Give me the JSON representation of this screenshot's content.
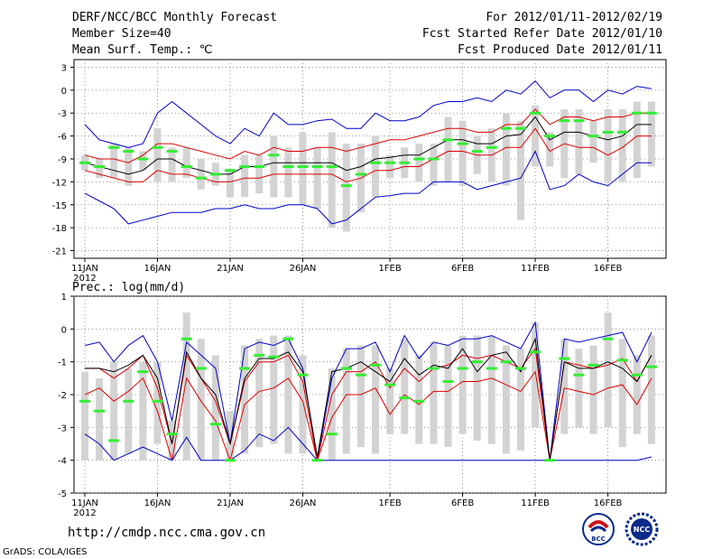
{
  "header": {
    "title_line1": "DERF/NCC/BCC Monthly Forecast",
    "title_line2": "Member Size=40",
    "title_line3": "Mean Surf. Temp.: ℃",
    "right_line1": "For 2012/01/11-2012/02/19",
    "right_line2": "Fcst Started Refer Date 2012/01/10",
    "right_line3": "Fcst Produced Date 2012/01/11"
  },
  "footer": {
    "url": "http://cmdp.ncc.cma.gov.cn",
    "credit": "GrADS: COLA/IGES",
    "logo_bcc_text": "BCC",
    "logo_ncc_text": "NCC"
  },
  "colors": {
    "spread": "#d3d3d3",
    "median": "#33ee33",
    "ensemble_max_min": "#0000cc",
    "ensemble_pct": "#dd0000",
    "ensemble_mean": "#000000",
    "grid": "#777777"
  },
  "chart_data": [
    {
      "type": "line",
      "title": "Mean Surf. Temp.: ℃",
      "xlabel": "",
      "ylabel": "",
      "ylim": [
        -22,
        4
      ],
      "yticks": [
        3,
        0,
        -3,
        -6,
        -9,
        -12,
        -15,
        -18,
        -21
      ],
      "x_ticks": [
        {
          "day": 1,
          "label": "11JAN",
          "sublabel": "2012"
        },
        {
          "day": 6,
          "label": "16JAN"
        },
        {
          "day": 11,
          "label": "21JAN"
        },
        {
          "day": 16,
          "label": "26JAN"
        },
        {
          "day": 22,
          "label": "1FEB"
        },
        {
          "day": 27,
          "label": "6FEB"
        },
        {
          "day": 32,
          "label": "11FEB"
        },
        {
          "day": 37,
          "label": "16FEB"
        }
      ],
      "x": [
        1,
        2,
        3,
        4,
        5,
        6,
        7,
        8,
        9,
        10,
        11,
        12,
        13,
        14,
        15,
        16,
        17,
        18,
        19,
        20,
        21,
        22,
        23,
        24,
        25,
        26,
        27,
        28,
        29,
        30,
        31,
        32,
        33,
        34,
        35,
        36,
        37,
        38,
        39,
        40
      ],
      "series": [
        {
          "name": "max",
          "role": "max",
          "values": [
            -4.5,
            -6.5,
            -7,
            -7.5,
            -7,
            -3,
            -1.5,
            -3,
            -4.5,
            -6,
            -7,
            -5,
            -6,
            -3,
            -4.5,
            -4.5,
            -4,
            -3.8,
            -5,
            -5,
            -3,
            -4,
            -4,
            -3.5,
            -2,
            -1.5,
            -1.5,
            -1,
            -1.5,
            0,
            -0.5,
            1.2,
            -1,
            0,
            0,
            -1.5,
            0,
            -0.5,
            0.5,
            0.2
          ]
        },
        {
          "name": "p75",
          "role": "pct",
          "values": [
            -8.5,
            -9,
            -9,
            -9.5,
            -8.5,
            -7,
            -7,
            -7.5,
            -8,
            -8.5,
            -9,
            -8,
            -8.5,
            -7.5,
            -8,
            -8,
            -7.5,
            -7.5,
            -8,
            -7.5,
            -7,
            -6.5,
            -6.5,
            -6,
            -5.5,
            -5,
            -5,
            -5.5,
            -5.5,
            -4.5,
            -4.5,
            -2.5,
            -4.5,
            -3.5,
            -3.5,
            -4,
            -3.5,
            -3.5,
            -3,
            -3
          ]
        },
        {
          "name": "mean",
          "role": "mean",
          "values": [
            -9.5,
            -10,
            -10.5,
            -11,
            -10.5,
            -9,
            -9,
            -10,
            -10.5,
            -11,
            -11,
            -10,
            -10,
            -9.5,
            -9.5,
            -9.5,
            -9.5,
            -9.5,
            -10.5,
            -10,
            -9,
            -8.8,
            -8.5,
            -8.5,
            -7.5,
            -6.5,
            -6.5,
            -7,
            -7,
            -6,
            -5.8,
            -3.5,
            -6.5,
            -5.5,
            -5.5,
            -6,
            -6.5,
            -6,
            -4.5,
            -4.5
          ]
        },
        {
          "name": "p25",
          "role": "pct",
          "values": [
            -10.5,
            -11,
            -11.5,
            -12,
            -12,
            -10.5,
            -11,
            -11,
            -11.5,
            -12,
            -12,
            -11.5,
            -11.5,
            -11,
            -11,
            -11,
            -11,
            -11,
            -12,
            -11.5,
            -10.5,
            -10.5,
            -10,
            -10,
            -9,
            -8,
            -8,
            -8.5,
            -8.5,
            -7.5,
            -7.5,
            -5,
            -8,
            -7,
            -7.5,
            -7.5,
            -8.5,
            -7.5,
            -6,
            -6
          ]
        },
        {
          "name": "min",
          "role": "min",
          "values": [
            -13.5,
            -14.5,
            -15.5,
            -17.5,
            -17,
            -16.5,
            -16,
            -16,
            -16,
            -15.5,
            -15.5,
            -15,
            -15.5,
            -15.5,
            -15,
            -15,
            -15.5,
            -17.5,
            -17,
            -15.5,
            -14,
            -13.8,
            -13.5,
            -13.5,
            -12,
            -12,
            -12,
            -13,
            -12.5,
            -12,
            -11.5,
            -8,
            -13,
            -12.5,
            -11,
            -12,
            -12.5,
            -11,
            -9.5,
            -9.5
          ]
        },
        {
          "name": "spread_top",
          "role": "bar_top",
          "values": [
            -8.5,
            -9,
            -7,
            -7.5,
            -8,
            -5,
            -7.5,
            -7.5,
            -9,
            -9.5,
            -10.5,
            -8.5,
            -8.5,
            -6,
            -7.5,
            -5.5,
            -7.5,
            -5.5,
            -7,
            -7,
            -6,
            -8.5,
            -7.5,
            -7,
            -7,
            -3.5,
            -4,
            -6,
            -5,
            -3,
            -4,
            -2,
            -5.5,
            -2.5,
            -2.5,
            -4,
            -2.5,
            -2.5,
            -1.5,
            -1.5
          ]
        },
        {
          "name": "spread_bottom",
          "role": "bar_bottom",
          "values": [
            -10.5,
            -11.5,
            -11.5,
            -12.5,
            -10.5,
            -12,
            -12,
            -11.5,
            -13,
            -12.5,
            -14,
            -14,
            -13.5,
            -14,
            -14,
            -15,
            -15.5,
            -18,
            -18.5,
            -16,
            -14,
            -11.5,
            -11.5,
            -12,
            -12.5,
            -12,
            -12.5,
            -11,
            -12,
            -12.5,
            -17,
            -10,
            -10,
            -11.5,
            -11,
            -9.5,
            -12,
            -12,
            -11.5,
            -10
          ]
        },
        {
          "name": "median",
          "role": "median",
          "values": [
            -9.5,
            -10,
            -7.5,
            -8,
            -9,
            -7.5,
            -8,
            -10,
            -11.5,
            -11,
            -10.5,
            -10,
            -10,
            -8.5,
            -10,
            -10,
            -10,
            -10,
            -12.5,
            -11,
            -9.5,
            -9.5,
            -9.5,
            -9,
            -9,
            -6.5,
            -7,
            -8,
            -7.5,
            -5,
            -5,
            -3,
            -6,
            -4,
            -4,
            -6,
            -5.5,
            -5.5,
            -3,
            -3
          ]
        }
      ]
    },
    {
      "type": "line",
      "title": "Prec.: log(mm/d)",
      "xlabel": "",
      "ylabel": "",
      "ylim": [
        -5,
        1
      ],
      "yticks": [
        1,
        0,
        -1,
        -2,
        -3,
        -4,
        -5
      ],
      "x_ticks": [
        {
          "day": 1,
          "label": "11JAN",
          "sublabel": "2012"
        },
        {
          "day": 6,
          "label": "16JAN"
        },
        {
          "day": 11,
          "label": "21JAN"
        },
        {
          "day": 16,
          "label": "26JAN"
        },
        {
          "day": 22,
          "label": "1FEB"
        },
        {
          "day": 27,
          "label": "6FEB"
        },
        {
          "day": 32,
          "label": "11FEB"
        },
        {
          "day": 37,
          "label": "16FEB"
        }
      ],
      "x": [
        1,
        2,
        3,
        4,
        5,
        6,
        7,
        8,
        9,
        10,
        11,
        12,
        13,
        14,
        15,
        16,
        17,
        18,
        19,
        20,
        21,
        22,
        23,
        24,
        25,
        26,
        27,
        28,
        29,
        30,
        31,
        32,
        33,
        34,
        35,
        36,
        37,
        38,
        39,
        40
      ],
      "series": [
        {
          "name": "max",
          "role": "max",
          "values": [
            -0.5,
            -0.4,
            -1,
            -0.5,
            -0.2,
            -1,
            -2.8,
            -0.4,
            -0.8,
            -1.2,
            -3.5,
            -0.6,
            -0.4,
            -0.5,
            -0.3,
            -1.2,
            -4,
            -1.5,
            -0.6,
            -0.6,
            -0.4,
            -1.3,
            -0.2,
            -0.9,
            -0.4,
            -0.5,
            -0.3,
            -0.3,
            -0.2,
            -0.4,
            -0.6,
            0.2,
            -4,
            -0.3,
            -0.4,
            -0.3,
            -0.2,
            -0.1,
            -1,
            -0.1
          ]
        },
        {
          "name": "p75",
          "role": "pct",
          "values": [
            -1.2,
            -1.2,
            -1.5,
            -1.2,
            -0.8,
            -1.8,
            -3.5,
            -0.8,
            -1.5,
            -2.2,
            -3.5,
            -1.6,
            -1,
            -1,
            -0.8,
            -1.6,
            -4,
            -2,
            -1.3,
            -1.3,
            -1,
            -1.8,
            -1.2,
            -1.6,
            -1.2,
            -1.1,
            -0.8,
            -0.9,
            -0.8,
            -1,
            -1.2,
            -0.6,
            -4,
            -1,
            -1.1,
            -1.2,
            -1.1,
            -0.9,
            -1.6,
            -0.8
          ]
        },
        {
          "name": "p25",
          "role": "pct",
          "values": [
            -2,
            -1.8,
            -2.2,
            -1.9,
            -1.5,
            -2.5,
            -4,
            -1.5,
            -2.2,
            -2.8,
            -4,
            -2.3,
            -1.9,
            -1.8,
            -1.5,
            -2.2,
            -4,
            -2.7,
            -2,
            -2,
            -1.8,
            -2.6,
            -2,
            -2.3,
            -1.9,
            -1.9,
            -1.6,
            -1.6,
            -1.5,
            -1.7,
            -1.9,
            -1.3,
            -4,
            -1.8,
            -1.9,
            -2,
            -1.8,
            -1.7,
            -2.3,
            -1.5
          ]
        },
        {
          "name": "min",
          "role": "min",
          "values": [
            -3.2,
            -3.5,
            -4,
            -3.8,
            -3.6,
            -3.8,
            -4,
            -3.3,
            -4,
            -4,
            -4,
            -3.7,
            -3.2,
            -3.4,
            -3,
            -3.5,
            -4,
            -4,
            -4,
            -4,
            -4,
            -4,
            -4,
            -4,
            -4,
            -4,
            -4,
            -4,
            -4,
            -4,
            -4,
            -4,
            -4,
            -4,
            -4,
            -4,
            -4,
            -4,
            -4,
            -3.9
          ]
        },
        {
          "name": "spread_top",
          "role": "bar_top",
          "values": [
            -1.3,
            -1.5,
            -1,
            -1.2,
            -1,
            -1,
            -2.8,
            0.5,
            -0.3,
            -0.8,
            -2.5,
            -0.5,
            -0.3,
            -0.2,
            -0.2,
            -0.8,
            -4,
            -1.2,
            -0.6,
            -0.5,
            -0.5,
            -1.2,
            -0.3,
            -0.8,
            -0.4,
            -0.5,
            -0.2,
            -0.2,
            -0.2,
            -0.5,
            -0.6,
            0.2,
            -4,
            -0.3,
            -0.6,
            -0.5,
            0.5,
            -0.3,
            -0.8,
            -0.2
          ]
        },
        {
          "name": "spread_bottom",
          "role": "bar_bottom",
          "values": [
            -4,
            -4,
            -4,
            -3.8,
            -4,
            -3.5,
            -4,
            -4,
            -4,
            -4,
            -4,
            -3.8,
            -3.6,
            -3.5,
            -3.8,
            -3.8,
            -4,
            -4,
            -3.8,
            -3.6,
            -3.8,
            -3.2,
            -3.2,
            -3.5,
            -3.5,
            -3.6,
            -3.2,
            -3.4,
            -3.5,
            -3.8,
            -3.7,
            -3,
            -4,
            -3.2,
            -3,
            -3.2,
            -3,
            -3.6,
            -3.2,
            -3.5
          ]
        },
        {
          "name": "median",
          "role": "median",
          "values": [
            -2.2,
            -2.5,
            -3.4,
            -2.2,
            -1.3,
            -2.2,
            -3.2,
            -0.3,
            -1.2,
            -2.9,
            -4,
            -1.2,
            -0.8,
            -0.85,
            -0.3,
            -1.4,
            -4,
            -3.2,
            -1.2,
            -1.4,
            -1.1,
            -1.7,
            -2.1,
            -2.2,
            -1.2,
            -1.6,
            -1.2,
            -1.0,
            -1.2,
            -1.0,
            -1.2,
            -0.7,
            -4,
            -0.9,
            -1.4,
            -1.1,
            -0.3,
            -0.95,
            -1.4,
            -1.15
          ]
        },
        {
          "name": "mean",
          "role": "mean",
          "values": [
            -1.2,
            -1.2,
            -1.3,
            -1.1,
            -0.8,
            -1.5,
            -3.5,
            -0.7,
            -1.5,
            -2,
            -3.5,
            -1.5,
            -0.9,
            -0.9,
            -0.7,
            -1.3,
            -3.9,
            -1.3,
            -1.2,
            -1,
            -1.3,
            -1.6,
            -0.9,
            -1.4,
            -1.1,
            -1.2,
            -0.6,
            -1.3,
            -0.8,
            -0.7,
            -1.3,
            -0.3,
            -4,
            -1,
            -1.2,
            -1.2,
            -1,
            -1.2,
            -1.6,
            -0.8
          ]
        }
      ]
    }
  ]
}
